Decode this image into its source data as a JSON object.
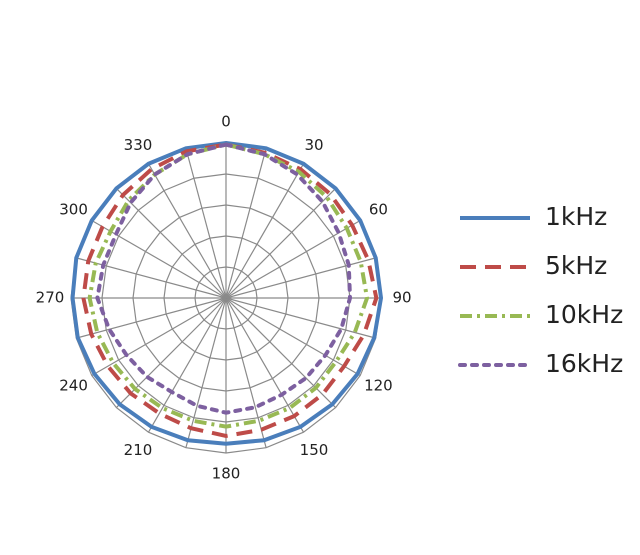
{
  "chart_data": {
    "type": "radar",
    "categories": [
      "0",
      null,
      "30",
      null,
      "60",
      null,
      "90",
      null,
      "120",
      null,
      "150",
      null,
      "180",
      null,
      "210",
      null,
      "240",
      null,
      "270",
      null,
      "300",
      null,
      "330",
      null
    ],
    "rlim": [
      0,
      5
    ],
    "rticks": [
      1,
      2,
      3,
      4,
      5
    ],
    "grid": true,
    "legend": "right",
    "series": [
      {
        "name": "1kHz",
        "color": "#4a7ebb",
        "style": "solid",
        "values": [
          5,
          5,
          5,
          5,
          5,
          5,
          5,
          4.95,
          4.9,
          4.85,
          4.8,
          4.75,
          4.7,
          4.75,
          4.8,
          4.85,
          4.9,
          4.95,
          4.95,
          5,
          5,
          5,
          5,
          5
        ]
      },
      {
        "name": "5kHz",
        "color": "#be4b48",
        "style": "dashed",
        "values": [
          4.95,
          4.85,
          4.8,
          4.75,
          4.7,
          4.75,
          4.85,
          4.6,
          4.4,
          4.4,
          4.4,
          4.4,
          4.45,
          4.35,
          4.3,
          4.35,
          4.4,
          4.5,
          4.6,
          4.6,
          4.6,
          4.7,
          4.8,
          4.9
        ]
      },
      {
        "name": "10kHz",
        "color": "#98b954",
        "style": "dashdot",
        "values": [
          4.95,
          4.8,
          4.7,
          4.6,
          4.5,
          4.5,
          4.55,
          4.3,
          4.1,
          4.1,
          4.1,
          4.1,
          4.15,
          4.1,
          4.1,
          4.15,
          4.2,
          4.3,
          4.4,
          4.35,
          4.3,
          4.45,
          4.6,
          4.8
        ]
      },
      {
        "name": "16kHz",
        "color": "#7d60a0",
        "style": "dotted",
        "values": [
          4.95,
          4.8,
          4.6,
          4.4,
          4.2,
          4.1,
          4.0,
          3.85,
          3.7,
          3.65,
          3.6,
          3.65,
          3.7,
          3.6,
          3.5,
          3.6,
          3.7,
          3.9,
          4.15,
          4.1,
          4.1,
          4.35,
          4.6,
          4.8
        ]
      }
    ]
  }
}
